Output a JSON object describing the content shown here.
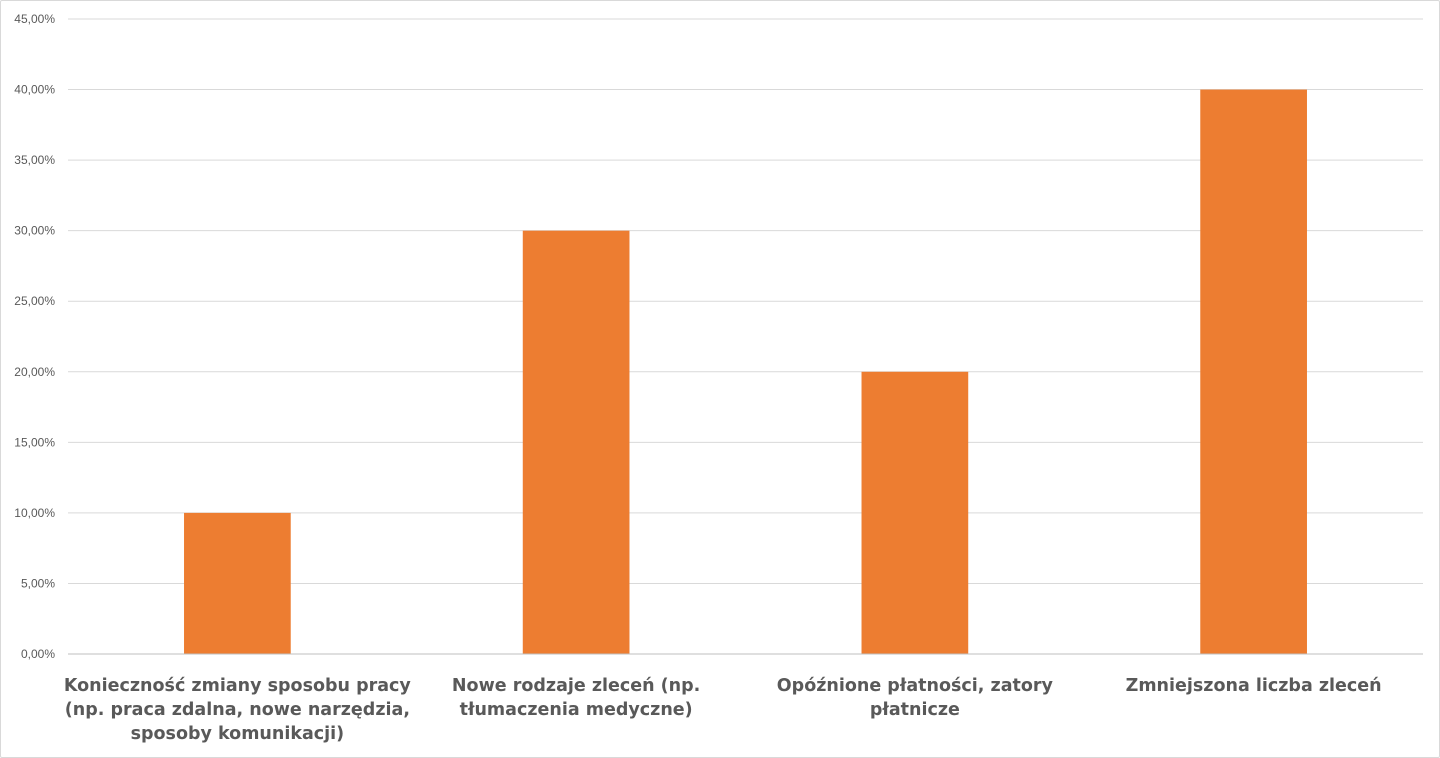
{
  "chart_data": {
    "type": "bar",
    "categories": [
      "Konieczność zmiany sposobu pracy (np. praca zdalna, nowe narzędzia, sposoby komunikacji)",
      "Nowe rodzaje zleceń (np. tłumaczenia medyczne)",
      "Opóźnione płatności, zatory płatnicze",
      "Zmniejszona liczba zleceń"
    ],
    "category_label_lines": [
      [
        "Konieczność zmiany sposobu pracy",
        "(np. praca zdalna, nowe narzędzia,",
        "sposoby komunikacji)"
      ],
      [
        "Nowe rodzaje zleceń (np.",
        "tłumaczenia medyczne)"
      ],
      [
        "Opóźnione płatności, zatory",
        "płatnicze"
      ],
      [
        "Zmniejszona liczba zleceń"
      ]
    ],
    "values": [
      10,
      30,
      20,
      40
    ],
    "ylim": [
      0,
      45
    ],
    "yticks": [
      0,
      5,
      10,
      15,
      20,
      25,
      30,
      35,
      40,
      45
    ],
    "ytick_labels": [
      "0,00%",
      "5,00%",
      "10,00%",
      "15,00%",
      "20,00%",
      "25,00%",
      "30,00%",
      "35,00%",
      "40,00%",
      "45,00%"
    ],
    "title": "",
    "xlabel": "",
    "ylabel": "",
    "grid": true,
    "legend": "none",
    "bar_color": "#ED7D31",
    "gridline_color": "#D9D9D9",
    "text_color": "#595959"
  }
}
